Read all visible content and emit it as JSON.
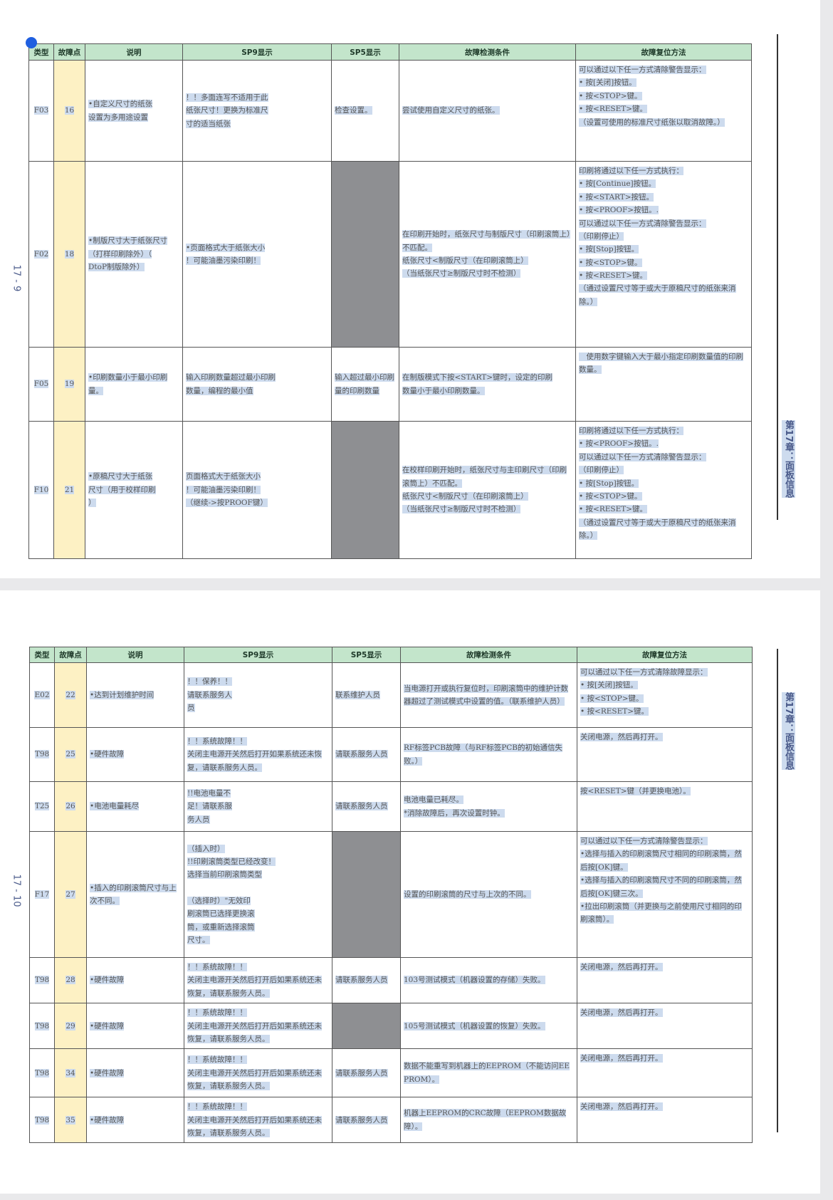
{
  "headers": [
    "类型",
    "故障点",
    "说明",
    "SP9显示",
    "SP5显示",
    "故障检测条件",
    "故障复位方法"
  ],
  "pages": [
    {
      "page_number": "17 - 9",
      "chapter": "第17章：面板信息",
      "rows": [
        {
          "type": "F03",
          "point": "16",
          "desc": "•自定义尺寸的纸张\n设置为多用途设置",
          "sp9": "！！多面连写不适用于此\n纸张尺寸！更换为标准尺\n寸的适当纸张",
          "sp5": "检查设置。",
          "sp5_gray": false,
          "condition": "尝试使用自定义尺寸的纸张。",
          "reset": "可以通过以下任一方式清除警告显示：\n• 按[关闭]按钮。\n• 按<STOP>键。\n• 按<RESET>键。\n（设置可使用的标准尺寸纸张以取消故障。）"
        },
        {
          "type": "F02",
          "point": "18",
          "desc": "•制版尺寸大于纸张尺寸\n（打样印刷除外）（\nDtoP制版除外）",
          "sp9": "•页面格式大于纸张大小\n！可能油墨污染印刷！",
          "sp5": "",
          "sp5_gray": true,
          "condition": "在印刷开始时，纸张尺寸与制版尺寸（印刷滚筒上）不匹配。\n纸张尺寸<制版尺寸（在印刷滚筒上）\n（当纸张尺寸≥制版尺寸时不检测）",
          "reset": "印刷将通过以下任一方式执行：\n• 按[Continue]按钮。\n• 按<START>按钮。\n• 按<PROOF>按钮。.\n可以通过以下任一方式清除警告显示：\n（印刷停止）\n• 按[Stop]按钮。\n• 按<STOP>键。\n• 按<RESET>键。\n（通过设置尺寸等于或大于原稿尺寸的纸张来消除。）"
        },
        {
          "type": "F05",
          "point": "19",
          "desc": "•印刷数量小于最小印刷量。",
          "sp9": "输入印刷数量超过最小印刷\n数量，编程的最小值",
          "sp5": "输入超过最小印刷量的印刷数量",
          "sp5_gray": false,
          "condition": "在制版模式下按<START>键时，设定的印刷\n数量小于最小印刷数量。",
          "reset": "　使用数字键输入大于最小指定印刷数量值的印刷数量。"
        },
        {
          "type": "F10",
          "point": "21",
          "desc": "•原稿尺寸大于纸张\n尺寸（用于校样印刷\n）",
          "sp9": "页面格式大于纸张大小\n！可能油墨污染印刷！\n（继续->按PROOF键）",
          "sp5": "",
          "sp5_gray": true,
          "condition": "在校样印刷开始时，纸张尺寸与主印刷尺寸（印刷滚筒上）不匹配。\n纸张尺寸<制版尺寸（在印刷滚筒上）\n（当纸张尺寸≥制版尺寸时不检测）",
          "reset": "印刷将通过以下任一方式执行：\n• 按<PROOF>按钮。.\n可以通过以下任一方式清除警告显示：\n（印刷停止）\n• 按[Stop]按钮。\n• 按<STOP>键。\n• 按<RESET>键。\n（通过设置尺寸等于或大于原稿尺寸的纸张来消除。）"
        }
      ]
    },
    {
      "page_number": "17 - 10",
      "chapter": "第17章：面板信息",
      "rows": [
        {
          "type": "E02",
          "point": "22",
          "desc": "•达到计划维护时间",
          "sp9": "！！保养！！\n请联系服务人\n员",
          "sp5": "联系维护人员",
          "sp5_gray": false,
          "condition": "当电源打开或执行复位时，印刷滚筒中的维护计数器超过了测试模式中设置的值。（联系维护人员）",
          "reset": "可以通过以下任一方式清除故障显示：\n• 按[关闭]按钮。\n• 按<STOP>键。\n• 按<RESET>键。"
        },
        {
          "type": "T98",
          "point": "25",
          "desc": "•硬件故障",
          "sp9": "！！系统故障！！\n关闭主电源开关然后打开如果系统还未恢复，请联系服务人员。",
          "sp5": "请联系服务人员",
          "sp5_gray": false,
          "condition": "RF标签PCB故障（与RF标签PCB的初始通信失败。）",
          "reset": "关闭电源，然后再打开。"
        },
        {
          "type": "T25",
          "point": "26",
          "desc": "•电池电量耗尽",
          "sp9": "!!电池电量不\n足！请联系服\n务人员",
          "sp5": "请联系服务人员",
          "sp5_gray": false,
          "condition": "电池电量已耗尽。\n *消除故障后，再次设置时钟。",
          "reset": "按<RESET>键（并更换电池）。"
        },
        {
          "type": "F17",
          "point": "27",
          "desc": "•插入的印刷滚筒尺寸与上次不同。",
          "sp9": "（插入时）\n!!印刷滚筒类型已经改变！\n选择当前印刷滚筒类型\n\n（选择时）\"无效印\n刷滚筒已选择更换滚\n筒，或重新选择滚筒\n尺寸。",
          "sp5": "",
          "sp5_gray": true,
          "condition": "设置的印刷滚筒的尺寸与上次的不同。",
          "reset": "可以通过以下任一方式清除警告显示：\n•选择与插入的印刷滚筒尺寸相同的印刷滚筒，然后按[OK]键。\n•选择与插入的印刷滚筒尺寸不同的印刷滚筒，然后按[OK]键三次。\n•拉出印刷滚筒（并更换与之前使用尺寸相同的印刷滚筒）。"
        },
        {
          "type": "T98",
          "point": "28",
          "desc": "•硬件故障",
          "sp9": "！！系统故障！！\n关闭主电源开关然后打开后如果系统还未恢复，请联系服务人员。",
          "sp5": "请联系服务人员",
          "sp5_gray": false,
          "condition": "103号测试模式（机器设置的存储）失败。",
          "reset": "关闭电源，然后再打开。"
        },
        {
          "type": "T98",
          "point": "29",
          "desc": "•硬件故障",
          "sp9": "！！系统故障！！\n关闭主电源开关然后打开后如果系统还未恢复，请联系服务人员。",
          "sp5": "",
          "sp5_gray": true,
          "condition": "105号测试模式（机器设置的恢复）失败。",
          "reset": "关闭电源，然后再打开。"
        },
        {
          "type": "T98",
          "point": "34",
          "desc": "•硬件故障",
          "sp9": "！！系统故障！！\n关闭主电源开关然后打开后如果系统还未恢复，请联系服务人员。",
          "sp5": "请联系服务人员",
          "sp5_gray": false,
          "condition": "数据不能重写到机器上的EEPROM（不能访问EEPROM）。",
          "reset": "关闭电源，然后再打开。"
        },
        {
          "type": "T98",
          "point": "35",
          "desc": "•硬件故障",
          "sp9": "！！系统故障！！\n关闭主电源开关然后打开后如果系统还未恢复，请联系服务人员。",
          "sp5": "请联系服务人员",
          "sp5_gray": false,
          "condition": "机器上EEPROM的CRC故障（EEPROM数据故障）。",
          "reset": "关闭电源，然后再打开。"
        }
      ]
    }
  ]
}
